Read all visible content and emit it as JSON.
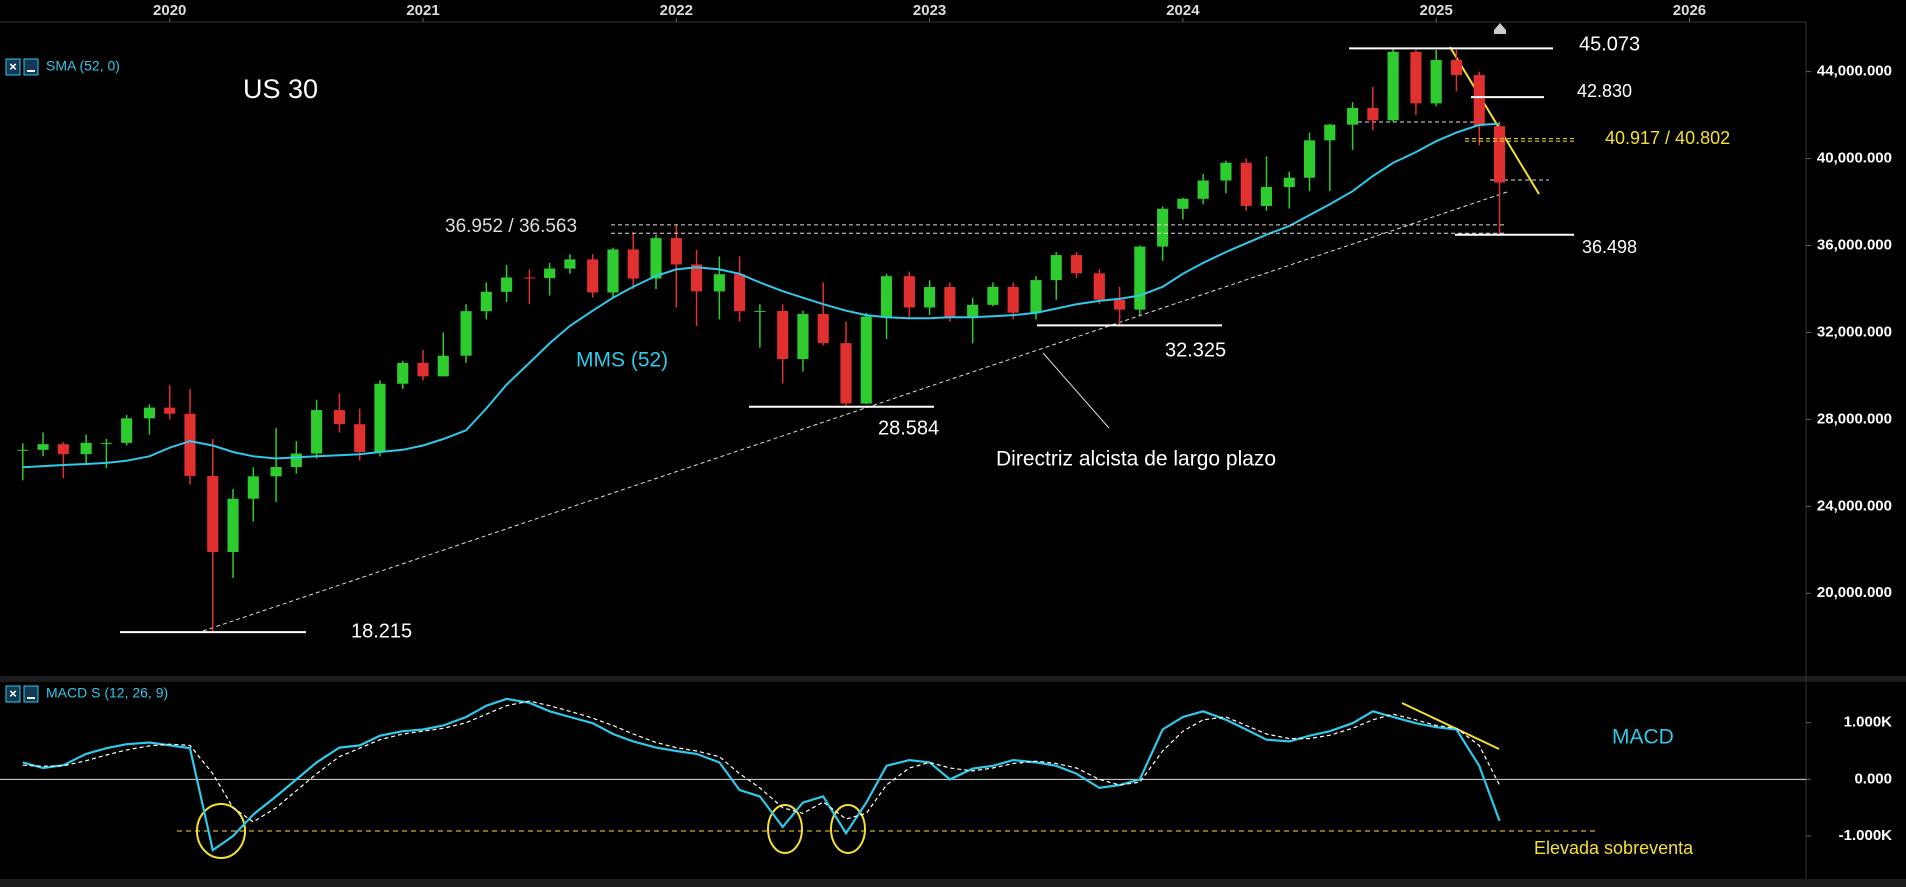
{
  "chart_data": [
    {
      "type": "candlestick",
      "title": "US 30",
      "indicator": "SMA (52, 0)",
      "x": [
        2019.42,
        2019.5,
        2019.58,
        2019.67,
        2019.75,
        2019.83,
        2019.92,
        2020.0,
        2020.08,
        2020.17,
        2020.25,
        2020.33,
        2020.42,
        2020.5,
        2020.58,
        2020.67,
        2020.75,
        2020.83,
        2020.92,
        2021.0,
        2021.08,
        2021.17,
        2021.25,
        2021.33,
        2021.42,
        2021.5,
        2021.58,
        2021.67,
        2021.75,
        2021.83,
        2021.92,
        2022.0,
        2022.08,
        2022.17,
        2022.25,
        2022.33,
        2022.42,
        2022.5,
        2022.58,
        2022.67,
        2022.75,
        2022.83,
        2022.92,
        2023.0,
        2023.08,
        2023.17,
        2023.25,
        2023.33,
        2023.42,
        2023.5,
        2023.58,
        2023.67,
        2023.75,
        2023.83,
        2023.92,
        2024.0,
        2024.08,
        2024.17,
        2024.25,
        2024.33,
        2024.42,
        2024.5,
        2024.58,
        2024.67,
        2024.75,
        2024.83,
        2024.92,
        2025.0,
        2025.08,
        2025.17,
        2025.25
      ],
      "close": [
        26600,
        26860,
        26400,
        26920,
        26920,
        28050,
        28540,
        28260,
        25400,
        21900,
        24350,
        25380,
        25810,
        26430,
        28430,
        27780,
        26500,
        29640,
        30600,
        29980,
        30930,
        32980,
        33870,
        34530,
        34500,
        34940,
        35360,
        33840,
        35820,
        34480,
        36340,
        35130,
        33890,
        34680,
        32980,
        32990,
        30780,
        32850,
        31510,
        28730,
        32730,
        34590,
        33150,
        34090,
        32660,
        33270,
        34100,
        32910,
        34410,
        35560,
        34720,
        33510,
        33050,
        35950,
        37690,
        38150,
        38990,
        39810,
        37820,
        38690,
        39120,
        40840,
        41560,
        42330,
        41760,
        44910,
        42540,
        44540,
        43840,
        41490,
        38900
      ],
      "high": [
        26900,
        27400,
        26950,
        27300,
        27100,
        28200,
        28700,
        29570,
        29400,
        27100,
        24800,
        25800,
        27600,
        27000,
        28900,
        29200,
        28500,
        29800,
        30700,
        31200,
        32000,
        33300,
        34300,
        35100,
        34900,
        35200,
        35600,
        35600,
        35900,
        36600,
        36500,
        36952,
        35800,
        35500,
        35500,
        33300,
        33300,
        33000,
        34300,
        32500,
        32900,
        34700,
        34800,
        34400,
        34300,
        33600,
        34300,
        34300,
        34600,
        35700,
        35700,
        34900,
        34100,
        36000,
        37800,
        38200,
        39300,
        39900,
        40000,
        40100,
        39400,
        41200,
        41600,
        42600,
        43300,
        45073,
        45000,
        45000,
        45000,
        44000,
        41700
      ],
      "low": [
        25200,
        26300,
        25300,
        25900,
        25750,
        26800,
        27300,
        28000,
        25000,
        18215,
        20700,
        23300,
        24200,
        25500,
        26200,
        27400,
        26100,
        26300,
        29400,
        29800,
        30000,
        30600,
        32600,
        33400,
        33300,
        33700,
        34700,
        33600,
        33600,
        34000,
        34000,
        33150,
        32300,
        32600,
        32500,
        31300,
        29650,
        30200,
        31400,
        28584,
        28700,
        31700,
        32600,
        32800,
        32500,
        31500,
        33200,
        32600,
        32600,
        33500,
        34500,
        33300,
        32325,
        32800,
        35300,
        37200,
        37900,
        38400,
        37600,
        37600,
        37700,
        38500,
        38500,
        40400,
        41300,
        41700,
        42000,
        42400,
        43100,
        40600,
        36498
      ],
      "up_color": "#2ecc2e",
      "down_color": "#e03030",
      "sma": {
        "name": "MMS (52)",
        "color": "#2fc9ea",
        "values": [
          25800,
          25850,
          25900,
          25950,
          26000,
          26100,
          26300,
          26700,
          27000,
          26800,
          26500,
          26300,
          26200,
          26250,
          26300,
          26350,
          26400,
          26500,
          26600,
          26800,
          27100,
          27500,
          28500,
          29600,
          30600,
          31500,
          32300,
          33000,
          33600,
          34100,
          34600,
          34900,
          35000,
          34900,
          34700,
          34300,
          33900,
          33600,
          33300,
          33000,
          32800,
          32700,
          32650,
          32650,
          32700,
          32700,
          32750,
          32800,
          32900,
          33100,
          33300,
          33450,
          33550,
          33700,
          34100,
          34700,
          35200,
          35700,
          36100,
          36500,
          36900,
          37400,
          37900,
          38500,
          39200,
          39800,
          40300,
          40800,
          41200,
          41550,
          41600
        ]
      },
      "xlim": [
        2019.33,
        2026.46
      ],
      "xticks": [
        2020,
        2021,
        2022,
        2023,
        2024,
        2025,
        2026
      ],
      "ylim": [
        16240,
        46100
      ],
      "yticks": [
        {
          "value": 20000,
          "label": "20,000.000"
        },
        {
          "value": 24000,
          "label": "24,000.000"
        },
        {
          "value": 28000,
          "label": "28,000.000"
        },
        {
          "value": 32000,
          "label": "32,000.000"
        },
        {
          "value": 36000,
          "label": "36,000.000"
        },
        {
          "value": 40000,
          "label": "40,000.000"
        },
        {
          "value": 44000,
          "label": "44,000.000"
        }
      ],
      "levels": [
        {
          "value": 45073,
          "label": "45.073"
        },
        {
          "value": 42830,
          "label": "42.830"
        },
        {
          "values": [
            40917,
            40802
          ],
          "label": "40.917 / 40.802"
        },
        {
          "values": [
            36952,
            36563
          ],
          "label": "36.952 / 36.563"
        },
        {
          "value": 36498,
          "label": "36.498"
        },
        {
          "value": 32325,
          "label": "32.325"
        },
        {
          "value": 28584,
          "label": "28.584"
        },
        {
          "value": 18215,
          "label": "18.215"
        }
      ],
      "annotations": [
        "Directriz alcista de largo plazo"
      ]
    },
    {
      "type": "line",
      "title": "MACD S (12, 26, 9)",
      "x": [
        2019.42,
        2019.5,
        2019.58,
        2019.67,
        2019.75,
        2019.83,
        2019.92,
        2020.0,
        2020.08,
        2020.17,
        2020.25,
        2020.33,
        2020.42,
        2020.5,
        2020.58,
        2020.67,
        2020.75,
        2020.83,
        2020.92,
        2021.0,
        2021.08,
        2021.17,
        2021.25,
        2021.33,
        2021.42,
        2021.5,
        2021.58,
        2021.67,
        2021.75,
        2021.83,
        2021.92,
        2022.0,
        2022.08,
        2022.17,
        2022.25,
        2022.33,
        2022.42,
        2022.5,
        2022.58,
        2022.67,
        2022.75,
        2022.83,
        2022.92,
        2023.0,
        2023.08,
        2023.17,
        2023.25,
        2023.33,
        2023.42,
        2023.5,
        2023.58,
        2023.67,
        2023.75,
        2023.83,
        2023.92,
        2024.0,
        2024.08,
        2024.17,
        2024.25,
        2024.33,
        2024.42,
        2024.5,
        2024.58,
        2024.67,
        2024.75,
        2024.83,
        2024.92,
        2025.0,
        2025.08,
        2025.17,
        2025.25
      ],
      "series": [
        {
          "name": "MACD",
          "color": "#2fc9ea",
          "values": [
            300,
            200,
            250,
            450,
            550,
            620,
            650,
            600,
            550,
            -1250,
            -1000,
            -620,
            -300,
            0,
            300,
            560,
            600,
            770,
            850,
            880,
            950,
            1100,
            1300,
            1420,
            1350,
            1200,
            1100,
            990,
            800,
            670,
            560,
            500,
            450,
            300,
            -190,
            -300,
            -840,
            -410,
            -300,
            -950,
            -410,
            240,
            340,
            300,
            0,
            190,
            240,
            340,
            300,
            240,
            100,
            -150,
            -100,
            0,
            880,
            1100,
            1200,
            1050,
            880,
            700,
            670,
            770,
            850,
            990,
            1200,
            1100,
            990,
            920,
            880,
            240,
            -730
          ]
        },
        {
          "color": "#ffffff",
          "values": [
            250,
            230,
            240,
            330,
            430,
            520,
            590,
            620,
            600,
            100,
            -500,
            -750,
            -500,
            -200,
            100,
            400,
            550,
            700,
            800,
            850,
            900,
            1000,
            1150,
            1300,
            1380,
            1300,
            1200,
            1080,
            950,
            800,
            650,
            560,
            500,
            400,
            100,
            -150,
            -500,
            -600,
            -400,
            -700,
            -600,
            -100,
            200,
            300,
            200,
            150,
            200,
            280,
            320,
            280,
            200,
            0,
            -100,
            -50,
            500,
            850,
            1050,
            1100,
            950,
            800,
            720,
            720,
            780,
            900,
            1050,
            1150,
            1050,
            950,
            900,
            600,
            -100
          ]
        }
      ],
      "xlim": [
        2019.33,
        2026.46
      ],
      "ylim": [
        -1740,
        1700
      ],
      "yticks": [
        {
          "value": 1000,
          "label": "1.000K"
        },
        {
          "value": 0,
          "label": "0.000"
        },
        {
          "value": -1000,
          "label": "-1.000K"
        }
      ],
      "annotations": [
        "Elevada sobreventa"
      ]
    }
  ]
}
